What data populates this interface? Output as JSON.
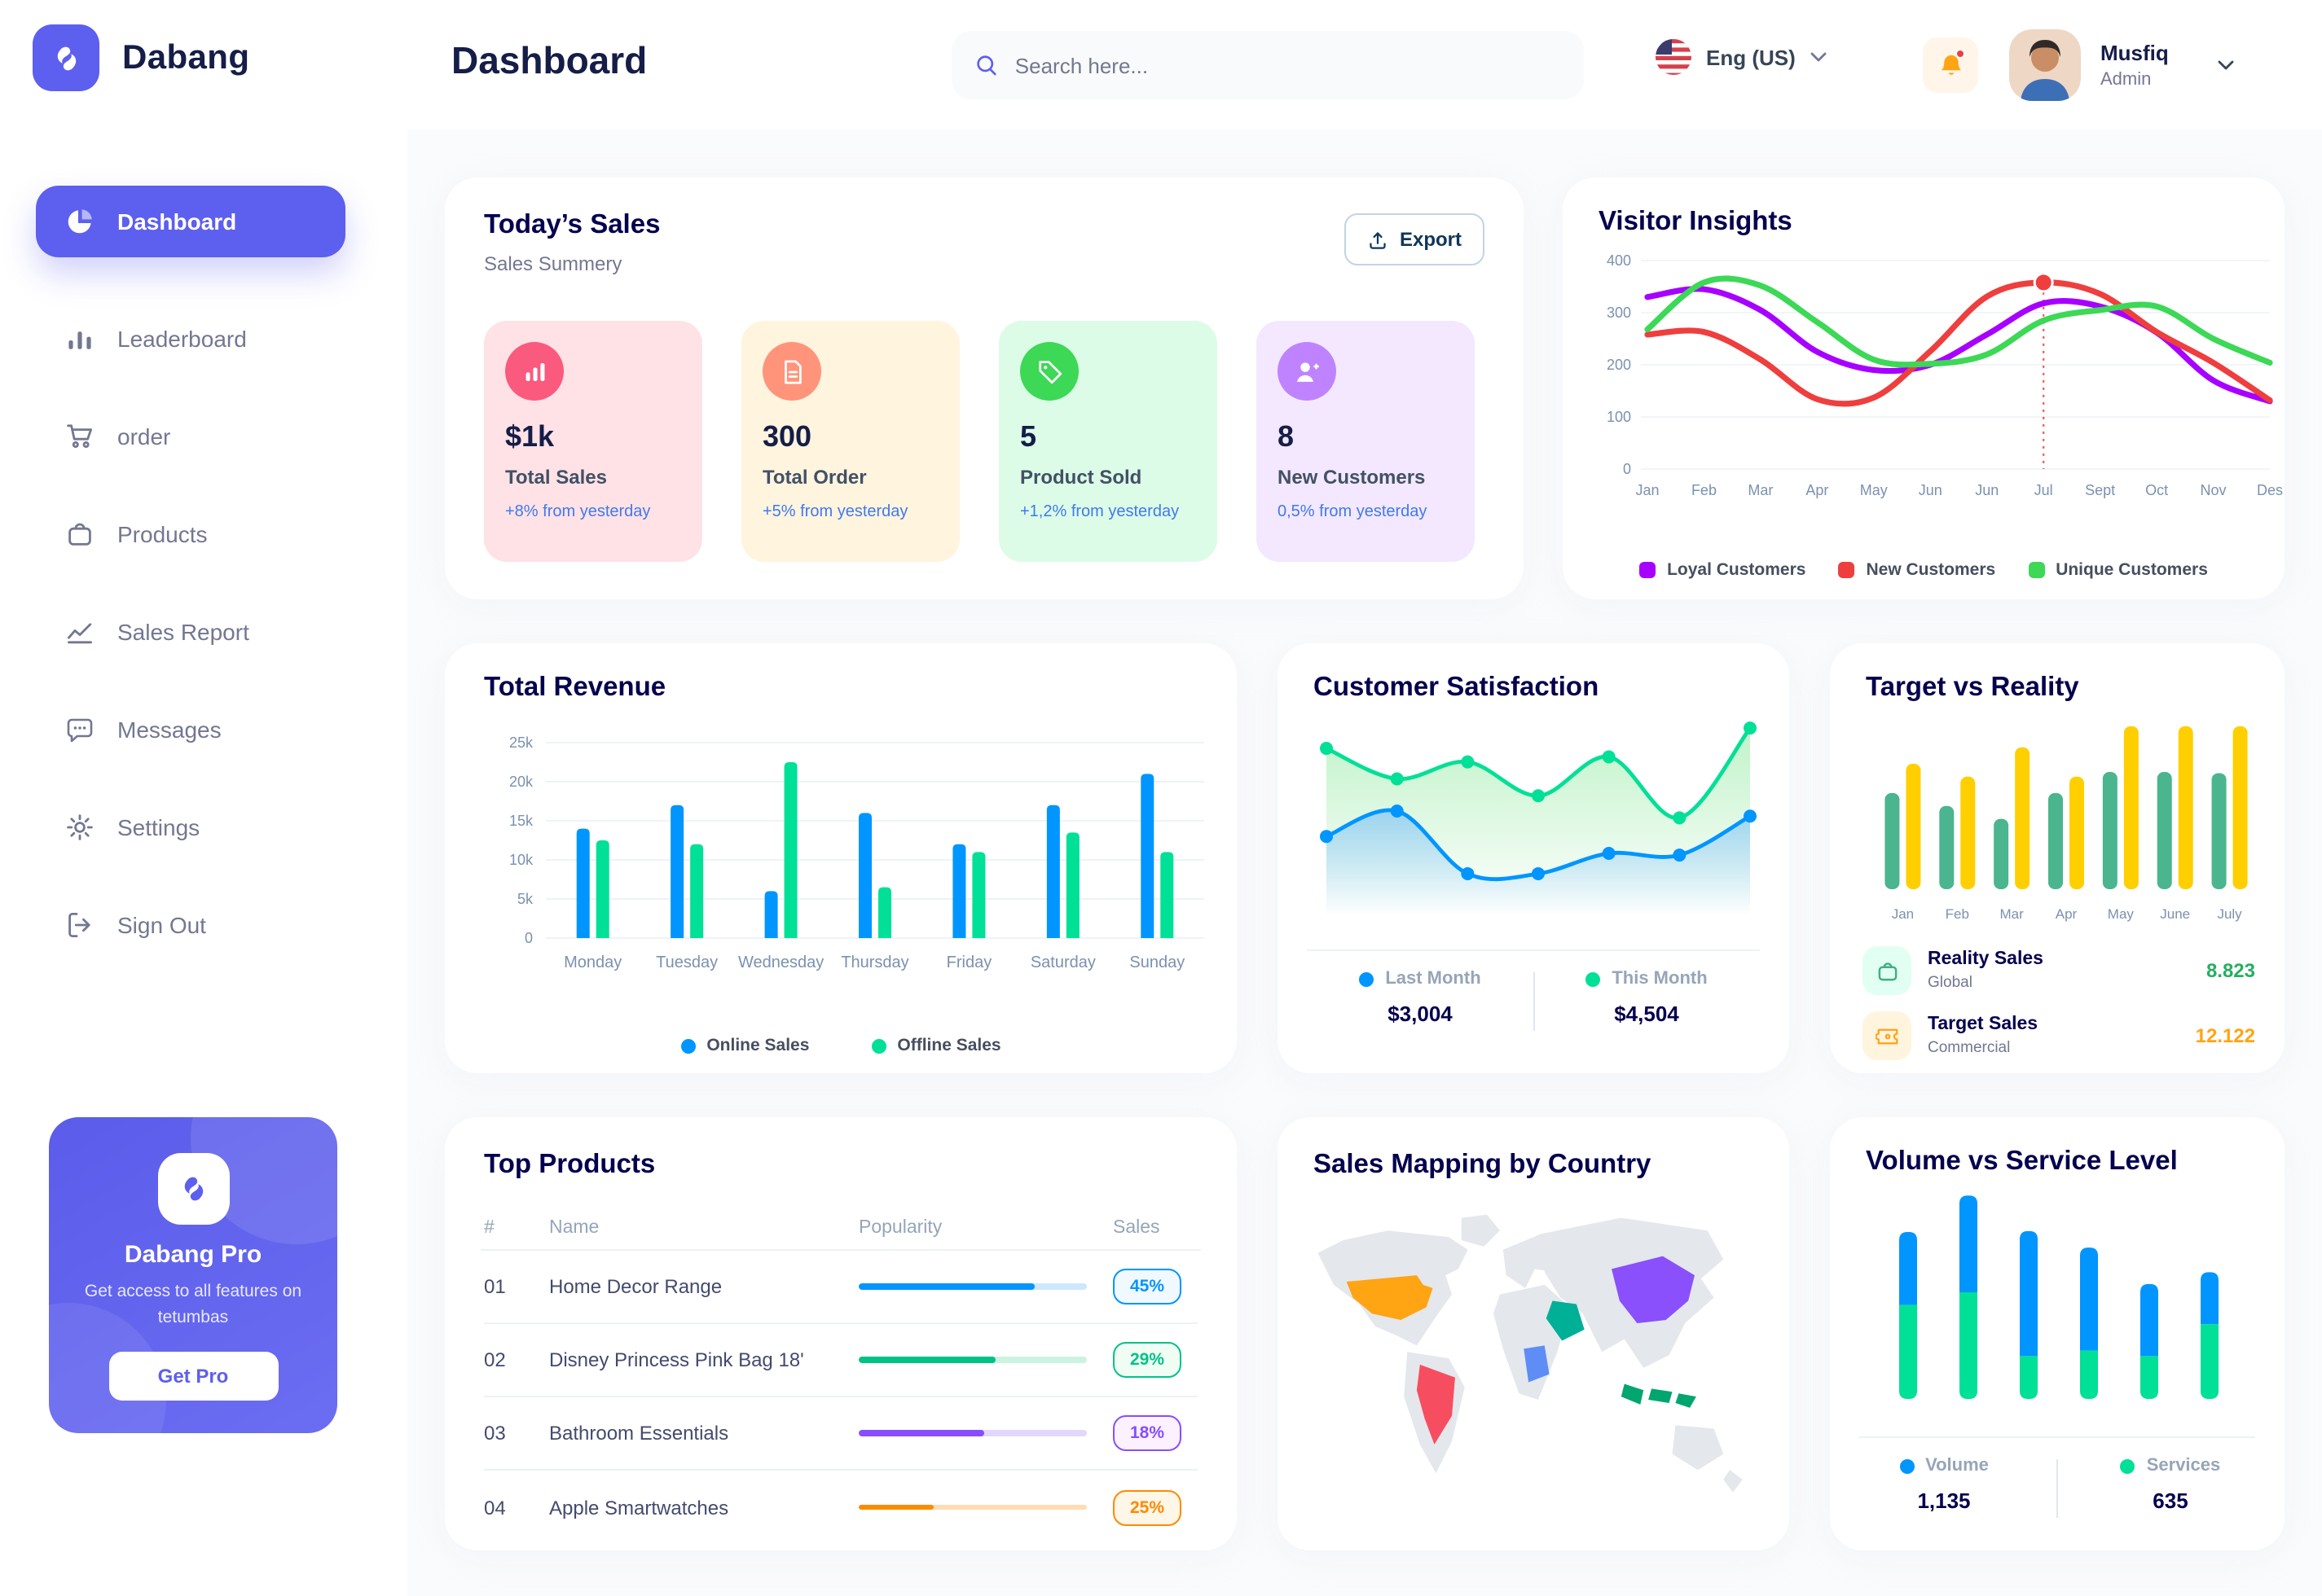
{
  "app": {
    "name": "Dabang"
  },
  "sidebar": {
    "items": [
      {
        "label": "Dashboard",
        "icon": "pie-chart-icon",
        "active": true
      },
      {
        "label": "Leaderboard",
        "icon": "leaderboard-icon",
        "active": false
      },
      {
        "label": "order",
        "icon": "cart-icon",
        "active": false
      },
      {
        "label": "Products",
        "icon": "bag-icon",
        "active": false
      },
      {
        "label": "Sales Report",
        "icon": "line-chart-icon",
        "active": false
      },
      {
        "label": "Messages",
        "icon": "message-icon",
        "active": false
      },
      {
        "label": "Settings",
        "icon": "gear-icon",
        "active": false
      },
      {
        "label": "Sign Out",
        "icon": "sign-out-icon",
        "active": false
      }
    ],
    "pro_card": {
      "title": "Dabang Pro",
      "description": "Get access to all features on tetumbas",
      "button_label": "Get Pro"
    }
  },
  "header": {
    "title": "Dashboard",
    "search_placeholder": "Search here...",
    "language": "Eng (US)",
    "user_name": "Musfiq",
    "user_role": "Admin"
  },
  "todays_sales": {
    "title": "Today’s Sales",
    "subtitle": "Sales Summery",
    "export_label": "Export",
    "cards": [
      {
        "value": "$1k",
        "label": "Total Sales",
        "delta": "+8% from yesterday",
        "bg": "#FFE2E5",
        "icon_bg": "#FA5A7D",
        "icon": "bar-chart-icon"
      },
      {
        "value": "300",
        "label": "Total Order",
        "delta": "+5% from yesterday",
        "bg": "#FFF4DE",
        "icon_bg": "#FF947A",
        "icon": "order-file-icon"
      },
      {
        "value": "5",
        "label": "Product Sold",
        "delta": "+1,2% from yesterday",
        "bg": "#DCFCE7",
        "icon_bg": "#3CD856",
        "icon": "tag-icon"
      },
      {
        "value": "8",
        "label": "New Customers",
        "delta": "0,5% from yesterday",
        "bg": "#F3E8FF",
        "icon_bg": "#BF83FF",
        "icon": "new-customer-icon"
      }
    ]
  },
  "chart_data": {
    "visitor_insights": {
      "type": "line",
      "title": "Visitor Insights",
      "x": [
        "Jan",
        "Feb",
        "Mar",
        "Apr",
        "May",
        "Jun",
        "Jun",
        "Jul",
        "Sept",
        "Oct",
        "Nov",
        "Des"
      ],
      "ylim": [
        0,
        400
      ],
      "yticks": [
        0,
        100,
        200,
        300,
        400
      ],
      "series": [
        {
          "name": "Loyal Customers",
          "color": "#A700FF",
          "values": [
            330,
            345,
            305,
            225,
            190,
            200,
            258,
            318,
            312,
            262,
            170,
            130
          ]
        },
        {
          "name": "New Customers",
          "color": "#EF3E3E",
          "values": [
            258,
            263,
            210,
            134,
            137,
            226,
            331,
            358,
            336,
            263,
            204,
            132
          ]
        },
        {
          "name": "Unique Customers",
          "color": "#3CD856",
          "values": [
            268,
            358,
            352,
            282,
            210,
            202,
            220,
            285,
            305,
            312,
            250,
            204
          ]
        }
      ],
      "marker": {
        "series_index": 1,
        "point_index": 7
      }
    },
    "total_revenue": {
      "type": "bar",
      "title": "Total Revenue",
      "categories": [
        "Monday",
        "Tuesday",
        "Wednesday",
        "Thursday",
        "Friday",
        "Saturday",
        "Sunday"
      ],
      "ylim": [
        0,
        25
      ],
      "ytick_labels": [
        "0",
        "5k",
        "10k",
        "15k",
        "20k",
        "25k"
      ],
      "series": [
        {
          "name": "Online Sales",
          "color": "#0095FF",
          "values": [
            14,
            17,
            6,
            16,
            12,
            17,
            21
          ]
        },
        {
          "name": "Offline Sales",
          "color": "#00E096",
          "values": [
            12.5,
            12,
            22.5,
            6.5,
            11,
            13.5,
            11
          ]
        }
      ]
    },
    "customer_satisfaction": {
      "type": "area",
      "title": "Customer Satisfaction",
      "series": [
        {
          "name": "Last Month",
          "total": "$3,004",
          "color": "#0095FF",
          "values": [
            35,
            50,
            13,
            13,
            25,
            24,
            47
          ]
        },
        {
          "name": "This Month",
          "total": "$4,504",
          "color": "#00E096",
          "values": [
            87,
            69,
            79,
            59,
            82,
            46,
            99
          ]
        }
      ]
    },
    "target_vs_reality": {
      "type": "bar",
      "title": "Target vs Reality",
      "categories": [
        "Jan",
        "Feb",
        "Mar",
        "Apr",
        "May",
        "June",
        "July"
      ],
      "series": [
        {
          "name": "Reality Sales",
          "subtitle": "Global",
          "color": "#4AB58E",
          "value_label": "8.823",
          "value_color": "#27AE60",
          "icon_bg": "#E2FFF3",
          "values": [
            8.2,
            7.1,
            6.0,
            8.2,
            10.0,
            10.0,
            9.9
          ]
        },
        {
          "name": "Target Sales",
          "subtitle": "Commercial",
          "color": "#FFCF00",
          "value_label": "12.122",
          "value_color": "#FFA412",
          "icon_bg": "#FFF4DE",
          "values": [
            10.7,
            9.6,
            12.1,
            9.6,
            13.9,
            13.9,
            13.9
          ]
        }
      ]
    },
    "volume_vs_service": {
      "type": "stacked-bar",
      "title": "Volume vs Service Level",
      "series": [
        {
          "name": "Volume",
          "total": "1,135",
          "color": "#0095FF",
          "values": [
            80,
            106,
            137,
            113,
            79,
            57
          ]
        },
        {
          "name": "Services",
          "total": "635",
          "color": "#00E096",
          "values": [
            103,
            117,
            47,
            53,
            47,
            82
          ]
        }
      ]
    }
  },
  "top_products": {
    "title": "Top Products",
    "headers": [
      "#",
      "Name",
      "Popularity",
      "Sales"
    ],
    "rows": [
      {
        "num": "01",
        "name": "Home Decor Range",
        "popularity": 77,
        "sales": "45%",
        "color": "#0095FF",
        "track": "#CDE7FF",
        "badge_bg": "#F0F9FF"
      },
      {
        "num": "02",
        "name": "Disney Princess Pink Bag 18'",
        "popularity": 60,
        "sales": "29%",
        "color": "#00C287",
        "track": "#CBF3E2",
        "badge_bg": "#F0FDF4"
      },
      {
        "num": "03",
        "name": "Bathroom Essentials",
        "popularity": 55,
        "sales": "18%",
        "color": "#884DFF",
        "track": "#E3D7FB",
        "badge_bg": "#FBF1FF"
      },
      {
        "num": "04",
        "name": "Apple Smartwatches",
        "popularity": 33,
        "sales": "25%",
        "color": "#FF8900",
        "track": "#FFDCB2",
        "badge_bg": "#FEF6E6"
      }
    ]
  },
  "sales_mapping": {
    "title": "Sales Mapping by Country",
    "countries": [
      {
        "name": "United States",
        "color": "#FFA412"
      },
      {
        "name": "Brazil",
        "color": "#F64E60"
      },
      {
        "name": "DR Congo",
        "color": "#5E8DF6"
      },
      {
        "name": "Saudi Arabia",
        "color": "#00B096"
      },
      {
        "name": "China",
        "color": "#8950FC"
      },
      {
        "name": "Indonesia",
        "color": "#00A66E"
      }
    ]
  },
  "colors": {
    "primary": "#5D5FEF",
    "navy": "#151D48",
    "card_title": "#05004E",
    "muted": "#737791",
    "axis": "#7B91B0",
    "delta_blue": "#4079ED",
    "bell": "#FFA412",
    "background": "#FAFBFC"
  }
}
